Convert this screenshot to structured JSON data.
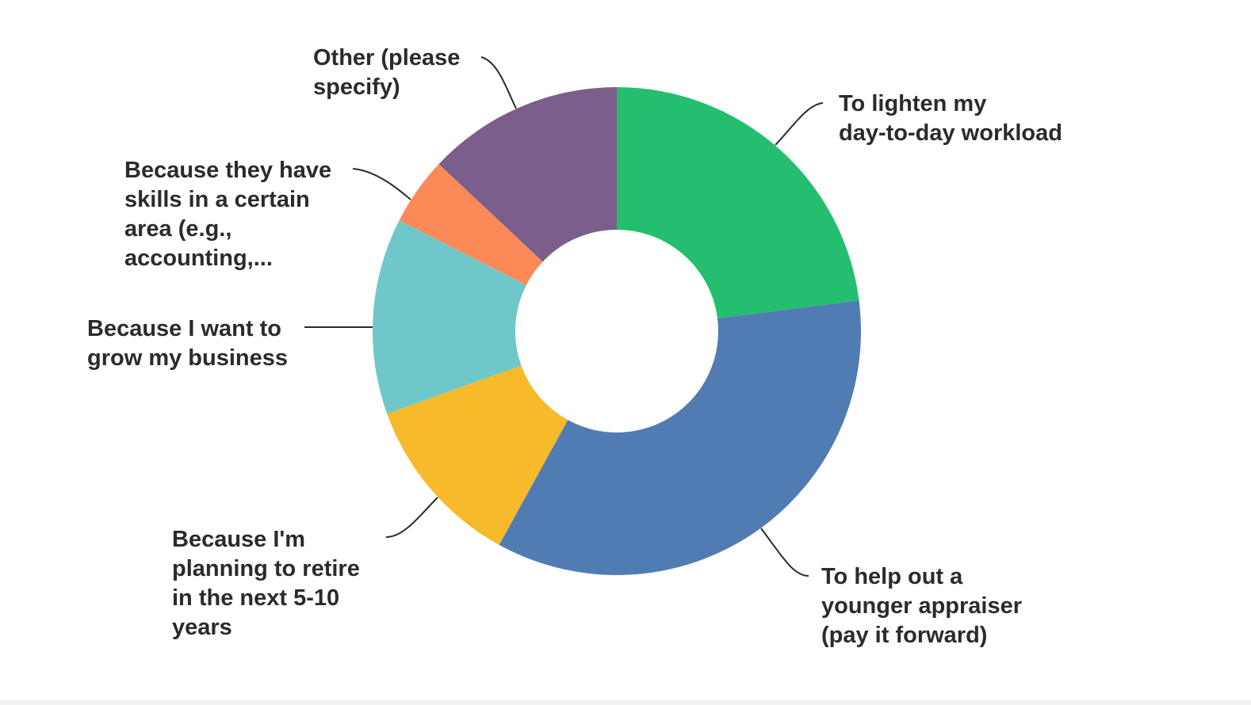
{
  "chart_data": {
    "type": "pie",
    "donut": true,
    "start": "top",
    "direction": "clockwise",
    "legend": "none",
    "slices": [
      {
        "label": "To lighten my day-to-day workload",
        "lines": [
          "To lighten my",
          "day-to-day workload"
        ],
        "value": 23.0,
        "color": "#25BE6E"
      },
      {
        "label": "To help out a younger appraiser (pay it forward)",
        "lines": [
          "To help out a",
          "younger appraiser",
          "(pay it forward)"
        ],
        "value": 35.0,
        "color": "#507CB3"
      },
      {
        "label": "Because I'm planning to retire in the next 5-10 years",
        "lines": [
          "Because I'm",
          "planning to retire",
          "in the next 5-10",
          "years"
        ],
        "value": 11.5,
        "color": "#F6BA2B"
      },
      {
        "label": "Because I want to grow my business",
        "lines": [
          "Because I want to",
          "grow my business"
        ],
        "value": 13.0,
        "color": "#70C7CA"
      },
      {
        "label": "Because they have skills in a certain area (e.g., accounting,...",
        "lines": [
          "Because they have",
          "skills in a certain",
          "area (e.g.,",
          "accounting,..."
        ],
        "value": 4.5,
        "color": "#FC8A58"
      },
      {
        "label": "Other (please specify)",
        "lines": [
          "Other (please",
          "specify)"
        ],
        "value": 13.0,
        "color": "#7B5E8C"
      }
    ]
  }
}
